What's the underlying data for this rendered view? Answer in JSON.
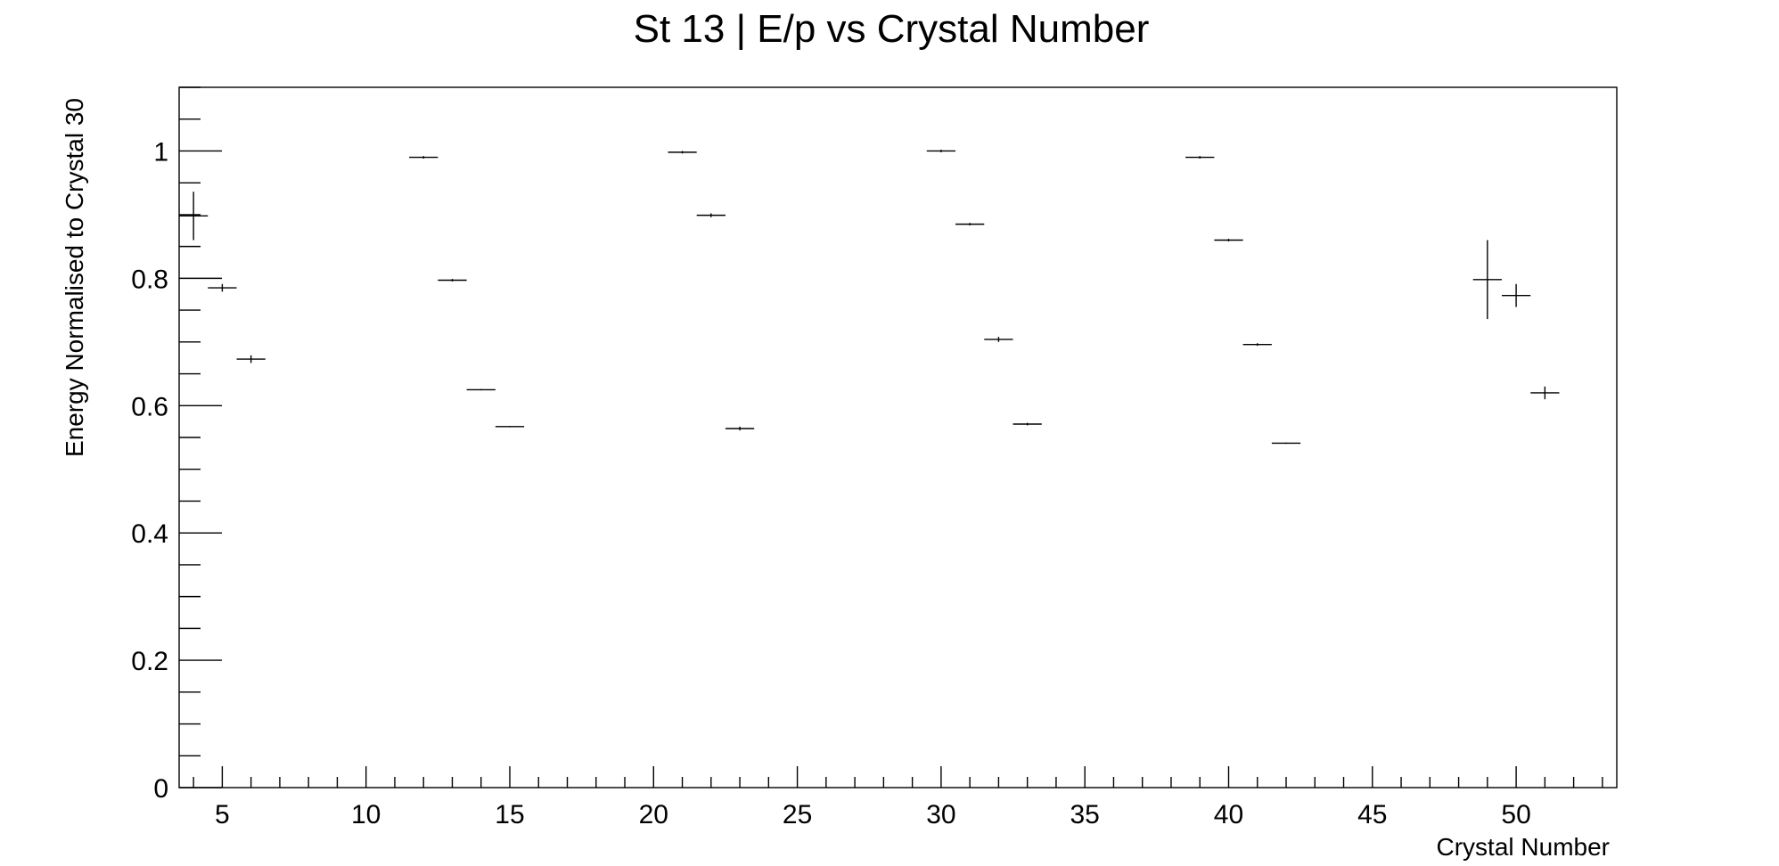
{
  "chart_data": {
    "type": "scatter",
    "title": "St 13 | E/p vs Crystal Number",
    "xlabel": "Crystal Number",
    "ylabel": "Energy Normalised to Crystal 30",
    "xlim": [
      3.5,
      53.5
    ],
    "ylim": [
      0,
      1.1
    ],
    "grid": false,
    "legend": "none",
    "x_ticks": [
      5,
      10,
      15,
      20,
      25,
      30,
      35,
      40,
      45,
      50
    ],
    "x_tick_labels": [
      "5",
      "10",
      "15",
      "20",
      "25",
      "30",
      "35",
      "40",
      "45",
      "50"
    ],
    "y_ticks": [
      0,
      0.2,
      0.4,
      0.6,
      0.8,
      1
    ],
    "y_tick_labels": [
      "0",
      "0.2",
      "0.4",
      "0.6",
      "0.8",
      "1"
    ],
    "points": [
      {
        "x": 4,
        "y": 0.898,
        "yerr": 0.038
      },
      {
        "x": 5,
        "y": 0.785,
        "yerr": 0.006
      },
      {
        "x": 6,
        "y": 0.673,
        "yerr": 0.006
      },
      {
        "x": 12,
        "y": 0.99,
        "yerr": 0.002
      },
      {
        "x": 13,
        "y": 0.797,
        "yerr": 0.002
      },
      {
        "x": 14,
        "y": 0.625,
        "yerr": 0.001
      },
      {
        "x": 15,
        "y": 0.567,
        "yerr": 0.001
      },
      {
        "x": 21,
        "y": 0.998,
        "yerr": 0.002
      },
      {
        "x": 22,
        "y": 0.899,
        "yerr": 0.003
      },
      {
        "x": 23,
        "y": 0.564,
        "yerr": 0.003
      },
      {
        "x": 30,
        "y": 1.0,
        "yerr": 0.002
      },
      {
        "x": 31,
        "y": 0.885,
        "yerr": 0.002
      },
      {
        "x": 32,
        "y": 0.704,
        "yerr": 0.004
      },
      {
        "x": 33,
        "y": 0.571,
        "yerr": 0.002
      },
      {
        "x": 39,
        "y": 0.99,
        "yerr": 0.002
      },
      {
        "x": 40,
        "y": 0.86,
        "yerr": 0.002
      },
      {
        "x": 41,
        "y": 0.696,
        "yerr": 0.002
      },
      {
        "x": 42,
        "y": 0.541,
        "yerr": 0.001
      },
      {
        "x": 49,
        "y": 0.798,
        "yerr": 0.062
      },
      {
        "x": 50,
        "y": 0.773,
        "yerr": 0.018
      },
      {
        "x": 51,
        "y": 0.62,
        "yerr": 0.01
      }
    ],
    "xerr": 0.5
  }
}
